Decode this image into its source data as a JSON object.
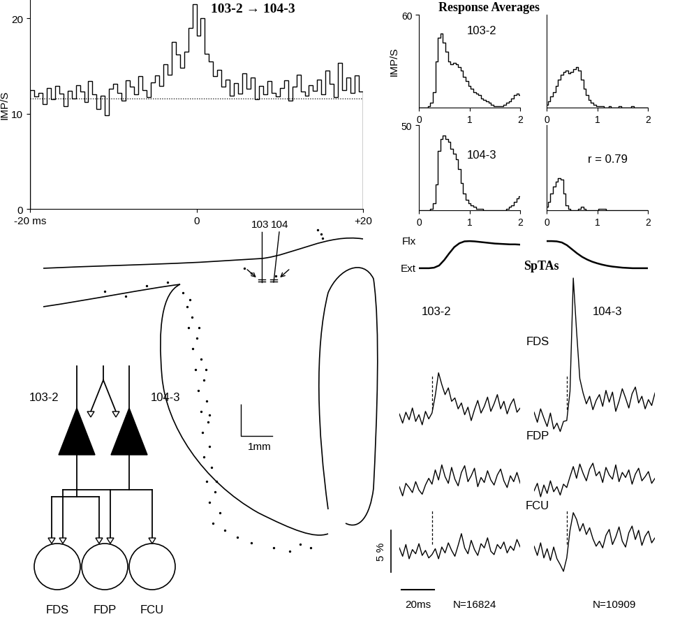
{
  "chart_data": [
    {
      "type": "histogram",
      "title": "103-2 → 104-3",
      "ylabel": "IMP/S",
      "bins": [
        -20,
        -19.5,
        -19,
        -18.5,
        -18,
        -17.5,
        -17,
        -16.5,
        -16,
        -15.5,
        -15,
        -14.5,
        -14,
        -13.5,
        -13,
        -12.5,
        -12,
        -11.5,
        -11,
        -10.5,
        -10,
        -9.5,
        -9,
        -8.5,
        -8,
        -7.5,
        -7,
        -6.5,
        -6,
        -5.5,
        -5,
        -4.5,
        -4,
        -3.5,
        -3,
        -2.5,
        -2,
        -1.5,
        -1,
        -0.5,
        0,
        0.5,
        1,
        1.5,
        2,
        2.5,
        3,
        3.5,
        4,
        4.5,
        5,
        5.5,
        6,
        6.5,
        7,
        7.5,
        8,
        8.5,
        9,
        9.5,
        10,
        10.5,
        11,
        11.5,
        12,
        12.5,
        13,
        13.5,
        14,
        14.5,
        15,
        15.5,
        16,
        16.5,
        17,
        17.5,
        18,
        18.5,
        19,
        19.5,
        20
      ],
      "counts": [
        12.5,
        11.8,
        12.2,
        11.0,
        12.7,
        11.5,
        12.9,
        12.1,
        10.8,
        12.4,
        11.6,
        13.0,
        12.3,
        11.2,
        13.4,
        12.0,
        10.5,
        11.9,
        9.8,
        12.6,
        13.1,
        12.2,
        11.4,
        13.5,
        12.8,
        12.0,
        13.9,
        12.5,
        11.7,
        13.3,
        14.0,
        12.9,
        15.2,
        14.1,
        17.5,
        16.2,
        14.8,
        16.5,
        19.0,
        21.5,
        18.2,
        20.0,
        16.3,
        15.5,
        13.9,
        14.6,
        12.8,
        13.6,
        11.9,
        13.2,
        12.1,
        14.2,
        12.6,
        13.8,
        11.5,
        12.9,
        12.0,
        13.4,
        12.2,
        11.8,
        12.7,
        13.5,
        11.4,
        12.8,
        14.1,
        12.3,
        11.9,
        13.0,
        12.4,
        13.6,
        12.0,
        14.5,
        13.1,
        11.7,
        15.3,
        12.5,
        13.8,
        12.2,
        14.0,
        12.3
      ],
      "baseline": 11.6,
      "xlim": [
        -20,
        20
      ],
      "xticks": [
        {
          "value": -20,
          "label": "-20 ms"
        },
        0,
        {
          "value": 20,
          "label": "+20"
        }
      ],
      "ylim": [
        0,
        22
      ],
      "yticks": [
        0,
        10,
        20
      ]
    },
    {
      "type": "line",
      "title": "Response Averages",
      "ylabel": "IMP/S",
      "x": [
        0,
        0.05,
        0.1,
        0.15,
        0.2,
        0.25,
        0.3,
        0.35,
        0.4,
        0.45,
        0.5,
        0.55,
        0.6,
        0.65,
        0.7,
        0.75,
        0.8,
        0.85,
        0.9,
        0.95,
        1,
        1.05,
        1.1,
        1.15,
        1.2,
        1.25,
        1.3,
        1.35,
        1.4,
        1.45,
        1.5,
        1.55,
        1.6,
        1.65,
        1.7,
        1.75,
        1.8,
        1.85,
        1.9,
        1.95,
        2
      ],
      "xlim": [
        0,
        2
      ],
      "xticks": [
        0,
        1,
        2
      ],
      "rows": [
        {
          "name": "103-2",
          "ylim": [
            0,
            60
          ],
          "yticks": [
            60
          ],
          "flexion": [
            0,
            0,
            0,
            0,
            1,
            3,
            10,
            30,
            45,
            48,
            42,
            36,
            30,
            28,
            29,
            28,
            26,
            24,
            20,
            17,
            14,
            12,
            10,
            9,
            8,
            6,
            5,
            4,
            3,
            2,
            1,
            1,
            1,
            1,
            2,
            3,
            4,
            6,
            8,
            9,
            8
          ],
          "extension": [
            2,
            4,
            7,
            10,
            14,
            18,
            21,
            23,
            24,
            22,
            23,
            25,
            26,
            24,
            18,
            12,
            8,
            5,
            3,
            2,
            1,
            1,
            1,
            0,
            0,
            1,
            0,
            0,
            0,
            1,
            0,
            0,
            0,
            0,
            1,
            0,
            0,
            0,
            0,
            0,
            0
          ]
        },
        {
          "name": "104-3",
          "ylim": [
            0,
            50
          ],
          "yticks": [
            50
          ],
          "annotation": "r = 0.79",
          "flexion": [
            0,
            0,
            0,
            0,
            0,
            1,
            4,
            15,
            35,
            42,
            44,
            42,
            40,
            36,
            33,
            30,
            24,
            16,
            10,
            6,
            4,
            3,
            2,
            1,
            1,
            1,
            0,
            0,
            0,
            0,
            0,
            0,
            0,
            0,
            0,
            1,
            2,
            3,
            5,
            7,
            8
          ],
          "extension": [
            2,
            5,
            10,
            14,
            17,
            19,
            18,
            10,
            3,
            1,
            0,
            0,
            0,
            1,
            2,
            1,
            0,
            0,
            0,
            0,
            0,
            1,
            1,
            1,
            0,
            0,
            0,
            0,
            0,
            0,
            0,
            0,
            0,
            0,
            0,
            0,
            0,
            0,
            0,
            0,
            0
          ]
        }
      ]
    },
    {
      "type": "line",
      "tick_labels": false,
      "x": [
        0,
        0.1,
        0.2,
        0.3,
        0.4,
        0.5,
        0.6,
        0.7,
        0.8,
        0.9,
        1,
        1.1,
        1.2,
        1.3,
        1.4,
        1.5,
        1.6,
        1.7,
        1.8,
        1.9,
        2
      ],
      "levels": [
        {
          "value": 1,
          "label": "Flx"
        },
        {
          "value": 0,
          "label": "Ext"
        }
      ],
      "flexion": [
        0,
        0,
        0,
        0.02,
        0.1,
        0.3,
        0.55,
        0.78,
        0.92,
        0.99,
        1.0,
        0.99,
        0.97,
        0.95,
        0.93,
        0.91,
        0.9,
        0.89,
        0.88,
        0.88,
        0.87
      ],
      "extension": [
        1,
        1,
        0.99,
        0.95,
        0.85,
        0.7,
        0.55,
        0.42,
        0.32,
        0.24,
        0.18,
        0.13,
        0.09,
        0.06,
        0.04,
        0.02,
        0.01,
        0,
        0,
        0,
        0
      ]
    },
    {
      "type": "line",
      "title": "SpTAs",
      "tick_labels": false,
      "x": [
        -20,
        -18,
        -16,
        -14,
        -12,
        -10,
        -8,
        -6,
        -4,
        -2,
        0,
        2,
        4,
        6,
        8,
        10,
        12,
        14,
        16,
        18,
        20,
        22,
        24,
        26,
        28,
        30,
        32,
        34,
        36,
        38,
        40,
        42,
        44,
        46,
        48,
        50,
        52,
        54
      ],
      "columns": [
        {
          "name": "103-2",
          "n_label": "N=16824"
        },
        {
          "name": "104-3",
          "n_label": "N=10909"
        }
      ],
      "rows": [
        {
          "name": "FDS",
          "values": [
            [
              0.3,
              -0.8,
              0.5,
              -0.4,
              1.0,
              -0.6,
              0.2,
              -1.0,
              0.6,
              -0.3,
              0.4,
              2.5,
              5.2,
              3.8,
              2.6,
              3.4,
              1.8,
              2.2,
              0.9,
              1.6,
              0.2,
              1.1,
              -0.5,
              0.8,
              1.9,
              0.4,
              1.2,
              2.3,
              0.6,
              1.5,
              2.6,
              0.9,
              1.8,
              0.3,
              1.4,
              2.1,
              0.5,
              1.0
            ],
            [
              0.5,
              -0.7,
              0.9,
              -0.2,
              -1.2,
              0.4,
              -1.5,
              -0.8,
              -1.8,
              -0.6,
              -0.5,
              3.0,
              16.5,
              10.2,
              4.5,
              2.8,
              1.5,
              2.4,
              0.8,
              1.9,
              2.6,
              1.2,
              3.1,
              1.7,
              2.9,
              0.6,
              1.8,
              3.3,
              2.2,
              1.0,
              2.7,
              3.5,
              1.6,
              2.4,
              0.9,
              2.0,
              1.3,
              2.8
            ]
          ]
        },
        {
          "name": "FDP",
          "values": [
            [
              0.2,
              -0.9,
              0.6,
              0.1,
              -0.5,
              0.8,
              -0.2,
              -0.7,
              0.4,
              1.2,
              0.5,
              2.2,
              1.0,
              2.8,
              1.4,
              0.6,
              2.5,
              1.1,
              0.3,
              1.9,
              2.7,
              0.8,
              1.5,
              2.4,
              0.2,
              1.3,
              0.7,
              2.1,
              1.0,
              0.4,
              1.6,
              2.3,
              0.9,
              0.1,
              1.5,
              0.8,
              1.9,
              0.6
            ],
            [
              -0.3,
              0.6,
              -1.0,
              0.4,
              -0.6,
              0.9,
              -0.4,
              0.2,
              -0.8,
              0.5,
              0.1,
              1.4,
              2.6,
              1.2,
              2.9,
              1.8,
              0.9,
              2.3,
              3.0,
              1.5,
              2.0,
              0.7,
              2.5,
              1.6,
              1.1,
              2.8,
              0.8,
              1.9,
              1.3,
              2.2,
              0.5,
              1.7,
              2.4,
              0.9,
              1.4,
              2.0,
              0.6,
              1.2
            ]
          ]
        },
        {
          "name": "FCU",
          "values": [
            [
              0.4,
              -0.6,
              0.8,
              -0.9,
              0.2,
              -0.3,
              0.9,
              -0.5,
              0.1,
              -0.8,
              -0.4,
              0.3,
              -0.9,
              0.5,
              -0.2,
              1.0,
              0.1,
              -0.6,
              0.7,
              2.1,
              0.4,
              -0.3,
              1.3,
              0.2,
              -0.5,
              0.9,
              0.4,
              1.6,
              0.0,
              -0.4,
              0.8,
              0.3,
              1.1,
              -0.2,
              0.6,
              0.1,
              1.4,
              0.5
            ],
            [
              0.6,
              -0.5,
              1.0,
              -0.8,
              0.3,
              -1.1,
              0.5,
              -0.9,
              -1.6,
              -2.4,
              -0.8,
              2.5,
              4.6,
              3.8,
              2.4,
              3.3,
              2.0,
              2.8,
              1.5,
              0.6,
              1.2,
              0.4,
              1.9,
              2.6,
              0.8,
              1.7,
              2.9,
              1.2,
              0.5,
              2.2,
              3.0,
              1.4,
              2.5,
              0.7,
              1.8,
              2.4,
              1.0,
              1.6
            ]
          ]
        }
      ],
      "scale_bars": {
        "y": {
          "value": 5,
          "label": "5 %"
        },
        "x": {
          "value": 20,
          "label": "20ms"
        }
      }
    }
  ],
  "diagram": {
    "electrodes": [
      "103",
      "104"
    ],
    "cells": [
      "103-2",
      "104-3"
    ],
    "muscles": [
      "FDS",
      "FDP",
      "FCU"
    ],
    "scale_bar": "1mm"
  }
}
